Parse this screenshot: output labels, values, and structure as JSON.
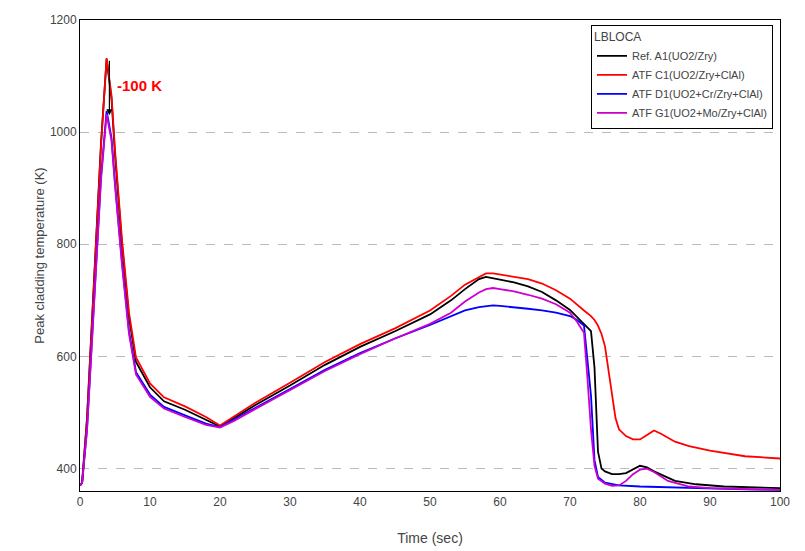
{
  "chart_data": {
    "type": "line",
    "xlabel": "Time (sec)",
    "ylabel": "Peak cladding temperature (K)",
    "xlim": [
      0,
      100
    ],
    "ylim": [
      360,
      1200
    ],
    "xticks": [
      0,
      10,
      20,
      30,
      40,
      50,
      60,
      70,
      80,
      90,
      100
    ],
    "yticks": [
      400,
      600,
      800,
      1000,
      1200
    ],
    "grid": "y",
    "legend": "upper right",
    "legend_title": "LBLOCA",
    "annotations": [
      {
        "text": "-100 K",
        "color": "red",
        "x": 5.0,
        "y": 1065
      }
    ],
    "arrow": {
      "x": 4.2,
      "from": 1130,
      "to": 1030
    },
    "series": [
      {
        "name": "Ref. A1(UO2/Zry)",
        "color": "#000000",
        "x": [
          0,
          0.3,
          1,
          2,
          3,
          3.8,
          4.5,
          5,
          6,
          7,
          8,
          10,
          12,
          15,
          18,
          20,
          22,
          25,
          30,
          35,
          40,
          45,
          50,
          53,
          55,
          57,
          58,
          59,
          60,
          62,
          64,
          66,
          68,
          70,
          71,
          72,
          73,
          73.5,
          74,
          74.5,
          75,
          76,
          77,
          78,
          79,
          80,
          81,
          82,
          85,
          88,
          92,
          96,
          100
        ],
        "values": [
          370,
          375,
          490,
          730,
          980,
          1130,
          1060,
          960,
          800,
          670,
          590,
          545,
          520,
          505,
          487,
          475,
          490,
          513,
          548,
          585,
          617,
          645,
          675,
          700,
          720,
          738,
          742,
          740,
          737,
          732,
          725,
          715,
          700,
          683,
          670,
          658,
          645,
          580,
          430,
          400,
          395,
          390,
          390,
          392,
          398,
          405,
          402,
          395,
          378,
          372,
          368,
          366,
          365
        ]
      },
      {
        "name": "ATF C1(UO2/Zry+ClAl)",
        "color": "#ff0000",
        "x": [
          0,
          0.3,
          1,
          2,
          3,
          3.8,
          4.5,
          5,
          6,
          7,
          8,
          10,
          12,
          15,
          18,
          20,
          22,
          25,
          30,
          35,
          40,
          45,
          50,
          53,
          55,
          57,
          58,
          59,
          60,
          62,
          64,
          66,
          68,
          70,
          71,
          72,
          73,
          73.5,
          74,
          74.5,
          75,
          75.5,
          76,
          76.5,
          77,
          78,
          79,
          80,
          81,
          82,
          83,
          84,
          85,
          87,
          90,
          95,
          100
        ],
        "values": [
          370,
          375,
          485,
          725,
          975,
          1132,
          1065,
          968,
          808,
          678,
          598,
          552,
          527,
          511,
          492,
          477,
          493,
          517,
          553,
          590,
          622,
          650,
          682,
          708,
          728,
          742,
          748,
          748,
          746,
          742,
          738,
          730,
          718,
          703,
          692,
          682,
          672,
          665,
          655,
          640,
          618,
          578,
          530,
          490,
          470,
          458,
          452,
          452,
          460,
          468,
          462,
          455,
          448,
          440,
          432,
          422,
          418
        ]
      },
      {
        "name": "ATF D1(UO2+Cr/Zry+ClAl)",
        "color": "#0000ff",
        "x": [
          0,
          0.3,
          1,
          2,
          3,
          3.8,
          4.5,
          5,
          6,
          7,
          8,
          10,
          12,
          15,
          18,
          20,
          22,
          25,
          30,
          35,
          40,
          45,
          50,
          53,
          55,
          57,
          58,
          59,
          60,
          62,
          64,
          66,
          68,
          70,
          71,
          72,
          73,
          73.5,
          74,
          75,
          77,
          80,
          85,
          90,
          95,
          100
        ],
        "values": [
          370,
          374,
          470,
          695,
          920,
          1038,
          990,
          910,
          768,
          645,
          572,
          532,
          510,
          495,
          480,
          474,
          487,
          508,
          542,
          576,
          606,
          632,
          656,
          672,
          682,
          688,
          690,
          691,
          690,
          688,
          685,
          682,
          678,
          672,
          665,
          655,
          530,
          415,
          385,
          375,
          370,
          368,
          366,
          364,
          363,
          362
        ]
      },
      {
        "name": "ATF G1(UO2+Mo/Zry+ClAl)",
        "color": "#cc00cc",
        "x": [
          0,
          0.3,
          1,
          2,
          3,
          3.8,
          4.5,
          5,
          6,
          7,
          8,
          10,
          12,
          15,
          18,
          20,
          22,
          25,
          30,
          35,
          40,
          45,
          50,
          53,
          55,
          57,
          58,
          59,
          60,
          62,
          64,
          66,
          68,
          70,
          71,
          72,
          72.5,
          73,
          73.5,
          74,
          75,
          76,
          77,
          78,
          79,
          80,
          81,
          82,
          84,
          87,
          90,
          95,
          100
        ],
        "values": [
          370,
          374,
          468,
          690,
          915,
          1032,
          985,
          905,
          763,
          640,
          568,
          528,
          507,
          492,
          478,
          473,
          485,
          506,
          540,
          574,
          604,
          632,
          658,
          678,
          698,
          714,
          720,
          722,
          720,
          716,
          710,
          703,
          693,
          678,
          662,
          642,
          560,
          470,
          405,
          382,
          373,
          369,
          370,
          378,
          390,
          398,
          400,
          394,
          378,
          368,
          365,
          363,
          362
        ]
      }
    ]
  }
}
